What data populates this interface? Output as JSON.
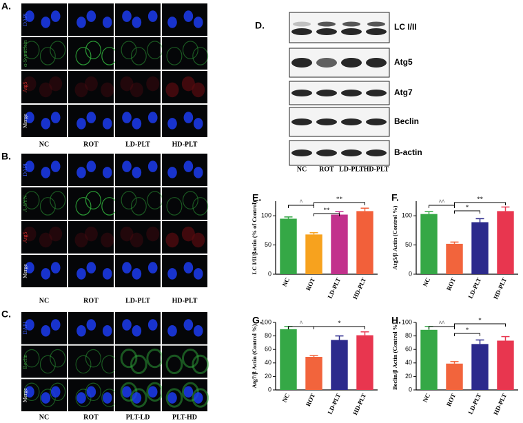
{
  "panels": {
    "A": {
      "label": "A.",
      "rows": [
        "DAPI",
        "α-Synuclein",
        "Atg5",
        "Merge"
      ],
      "columns": [
        "NC",
        "ROT",
        "LD-PLT",
        "HD-PLT"
      ]
    },
    "B": {
      "label": "B.",
      "rows": [
        "DAPI",
        "A-SYN",
        "Atg5",
        "Merge"
      ],
      "columns": [
        "NC",
        "ROT",
        "LD-PLT",
        "HD-PLT"
      ]
    },
    "C": {
      "label": "C.",
      "rows": [
        "DAPI",
        "Beclin",
        "Merge"
      ],
      "columns": [
        "NC",
        "ROT",
        "PLT-LD",
        "PLT-HD"
      ]
    },
    "D": {
      "label": "D.",
      "rows": [
        "LC I/II",
        "Atg5",
        "Atg7",
        "Beclin",
        "B-actin"
      ],
      "columns": [
        "NC",
        "ROT",
        "LD-PLT",
        "HD-PLT"
      ]
    }
  },
  "chart_data": [
    {
      "type": "bar",
      "label": "E.",
      "ylabel": "LC I/II/βactin (% of Control)",
      "categories": [
        "NC",
        "ROT",
        "LD-PLT",
        "HD-PLT"
      ],
      "values": [
        95,
        68,
        102,
        108
      ],
      "errors": [
        3,
        3,
        5,
        5
      ],
      "colors": [
        "#35a846",
        "#f7a21e",
        "#c2318c",
        "#f2603a"
      ],
      "ylim": [
        0,
        125
      ],
      "yticks": [
        0,
        50,
        100
      ],
      "annotations": [
        "^",
        "**",
        "**"
      ]
    },
    {
      "type": "bar",
      "label": "F.",
      "ylabel": "Atg5/β Actin (Control %)",
      "categories": [
        "NC",
        "ROT",
        "LD-PLT",
        "HD-PLT"
      ],
      "values": [
        103,
        52,
        89,
        108
      ],
      "errors": [
        4,
        3,
        6,
        7
      ],
      "colors": [
        "#35a846",
        "#f2643c",
        "#2c2a8c",
        "#e8364f"
      ],
      "ylim": [
        0,
        125
      ],
      "yticks": [
        0,
        50,
        100
      ],
      "annotations": [
        "^^",
        "*",
        "**"
      ]
    },
    {
      "type": "bar",
      "label": "G.",
      "ylabel": "Atg7/β Actin (Control %)",
      "categories": [
        "NC",
        "ROT",
        "LD-PLT",
        "HD-PLT"
      ],
      "values": [
        90,
        49,
        74,
        81
      ],
      "errors": [
        4,
        2,
        6,
        5
      ],
      "colors": [
        "#35a846",
        "#f2643c",
        "#2c2a8c",
        "#e8364f"
      ],
      "ylim": [
        0,
        100
      ],
      "yticks": [
        0,
        20,
        40,
        60,
        80,
        100
      ],
      "annotations": [
        "^",
        "*"
      ]
    },
    {
      "type": "bar",
      "label": "H.",
      "ylabel": "Beclin/β Actin (Control %)",
      "categories": [
        "NC",
        "ROT",
        "LD-PLT",
        "HD-PLT"
      ],
      "values": [
        89,
        39,
        68,
        73
      ],
      "errors": [
        5,
        3,
        6,
        6
      ],
      "colors": [
        "#35a846",
        "#f2643c",
        "#2c2a8c",
        "#e8364f"
      ],
      "ylim": [
        0,
        100
      ],
      "yticks": [
        0,
        20,
        40,
        60,
        80,
        100
      ],
      "annotations": [
        "^^",
        "*",
        "*"
      ]
    }
  ]
}
